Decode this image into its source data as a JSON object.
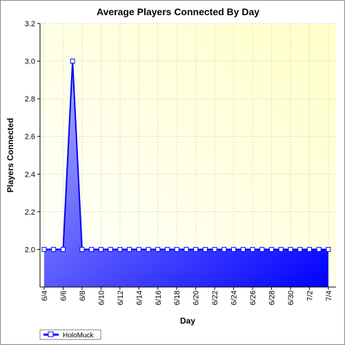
{
  "chart_data": {
    "type": "area",
    "title": "Average Players Connected By Day",
    "xlabel": "Day",
    "ylabel": "Players Connected",
    "categories": [
      "6/4",
      "6/5",
      "6/6",
      "6/7",
      "6/8",
      "6/9",
      "6/10",
      "6/11",
      "6/12",
      "6/13",
      "6/14",
      "6/15",
      "6/16",
      "6/17",
      "6/18",
      "6/19",
      "6/20",
      "6/21",
      "6/22",
      "6/23",
      "6/24",
      "6/25",
      "6/26",
      "6/27",
      "6/28",
      "6/29",
      "6/30",
      "7/1",
      "7/2",
      "7/3",
      "7/4"
    ],
    "x_tick_labels": [
      "6/4",
      "6/6",
      "6/8",
      "6/10",
      "6/12",
      "6/14",
      "6/16",
      "6/18",
      "6/20",
      "6/22",
      "6/24",
      "6/26",
      "6/28",
      "6/30",
      "7/2",
      "7/4"
    ],
    "y_ticks": [
      2.0,
      2.2,
      2.4,
      2.6,
      2.8,
      3.0,
      3.2
    ],
    "ylim": [
      1.8,
      3.2
    ],
    "grid": true,
    "legend_position": "bottom-left",
    "series": [
      {
        "name": "HoloMuck",
        "values": [
          2.0,
          2.0,
          2.0,
          3.0,
          2.0,
          2.0,
          2.0,
          2.0,
          2.0,
          2.0,
          2.0,
          2.0,
          2.0,
          2.0,
          2.0,
          2.0,
          2.0,
          2.0,
          2.0,
          2.0,
          2.0,
          2.0,
          2.0,
          2.0,
          2.0,
          2.0,
          2.0,
          2.0,
          2.0,
          2.0,
          2.0
        ],
        "line_color": "#0000ff",
        "fill_start_color": "#b4b4ff",
        "fill_end_color": "#0000ff"
      }
    ]
  }
}
